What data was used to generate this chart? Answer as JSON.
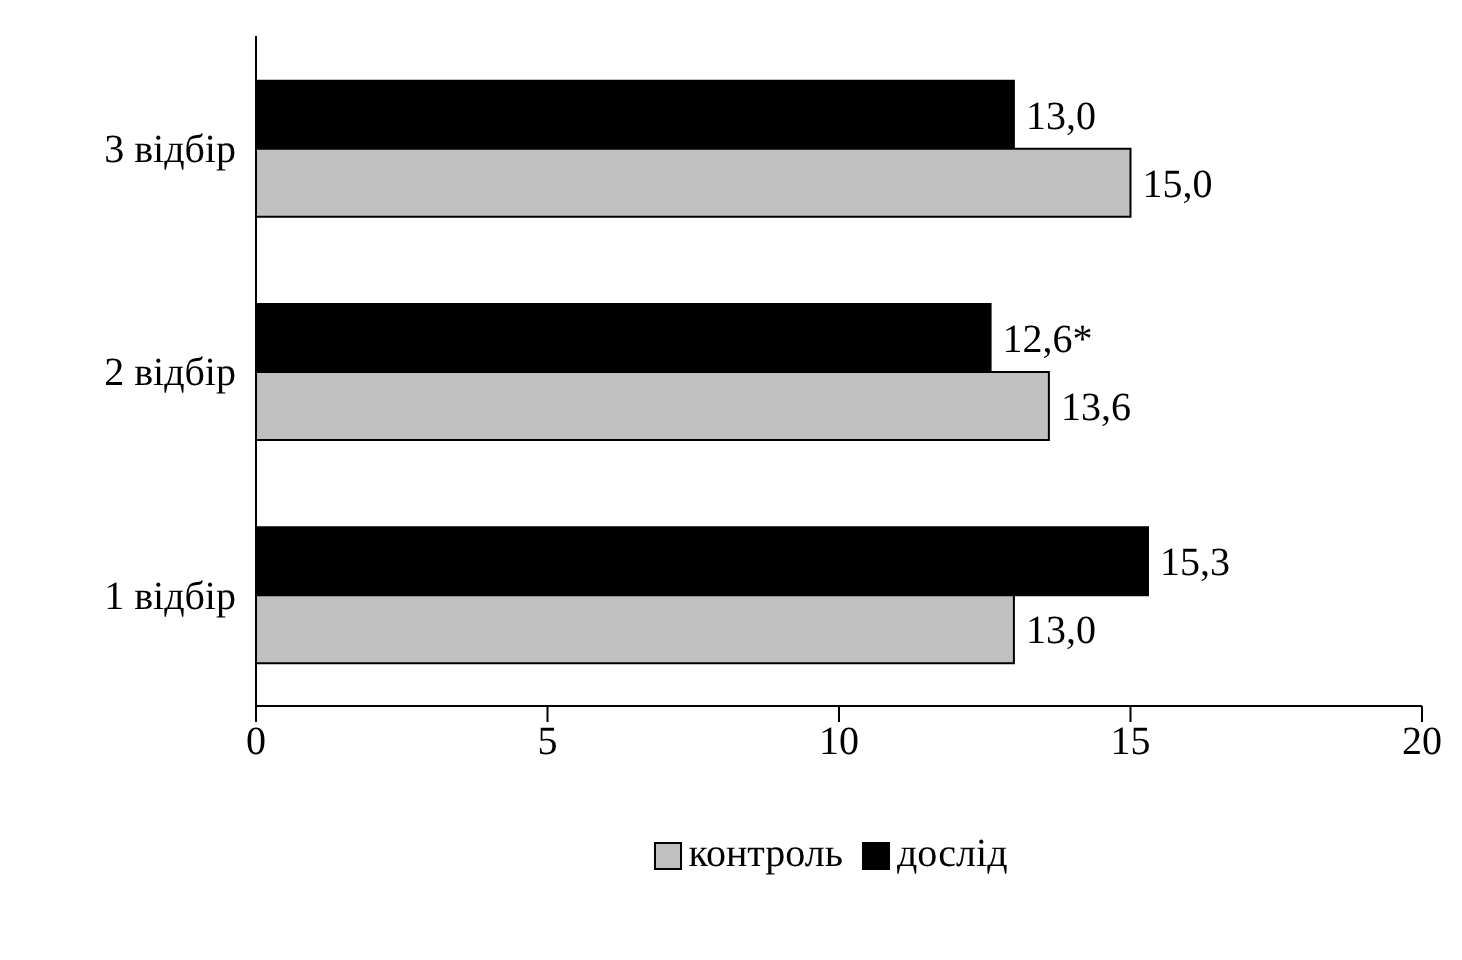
{
  "chart_data": {
    "type": "bar",
    "orientation": "horizontal",
    "categories": [
      "3 відбір",
      "2 відбір",
      "1 відбір"
    ],
    "series": [
      {
        "name": "контроль",
        "color": "#c0c0c0",
        "values": [
          15.0,
          13.6,
          13.0
        ],
        "value_labels": [
          "15,0",
          "13,6",
          "13,0"
        ]
      },
      {
        "name": "дослід",
        "color": "#000000",
        "values": [
          13.0,
          12.6,
          15.3
        ],
        "value_labels": [
          "13,0",
          "12,6*",
          "15,3"
        ]
      }
    ],
    "xlim": [
      0,
      20
    ],
    "xticks": [
      0,
      5,
      10,
      15,
      20
    ],
    "grid": false,
    "legend": "bottom"
  }
}
